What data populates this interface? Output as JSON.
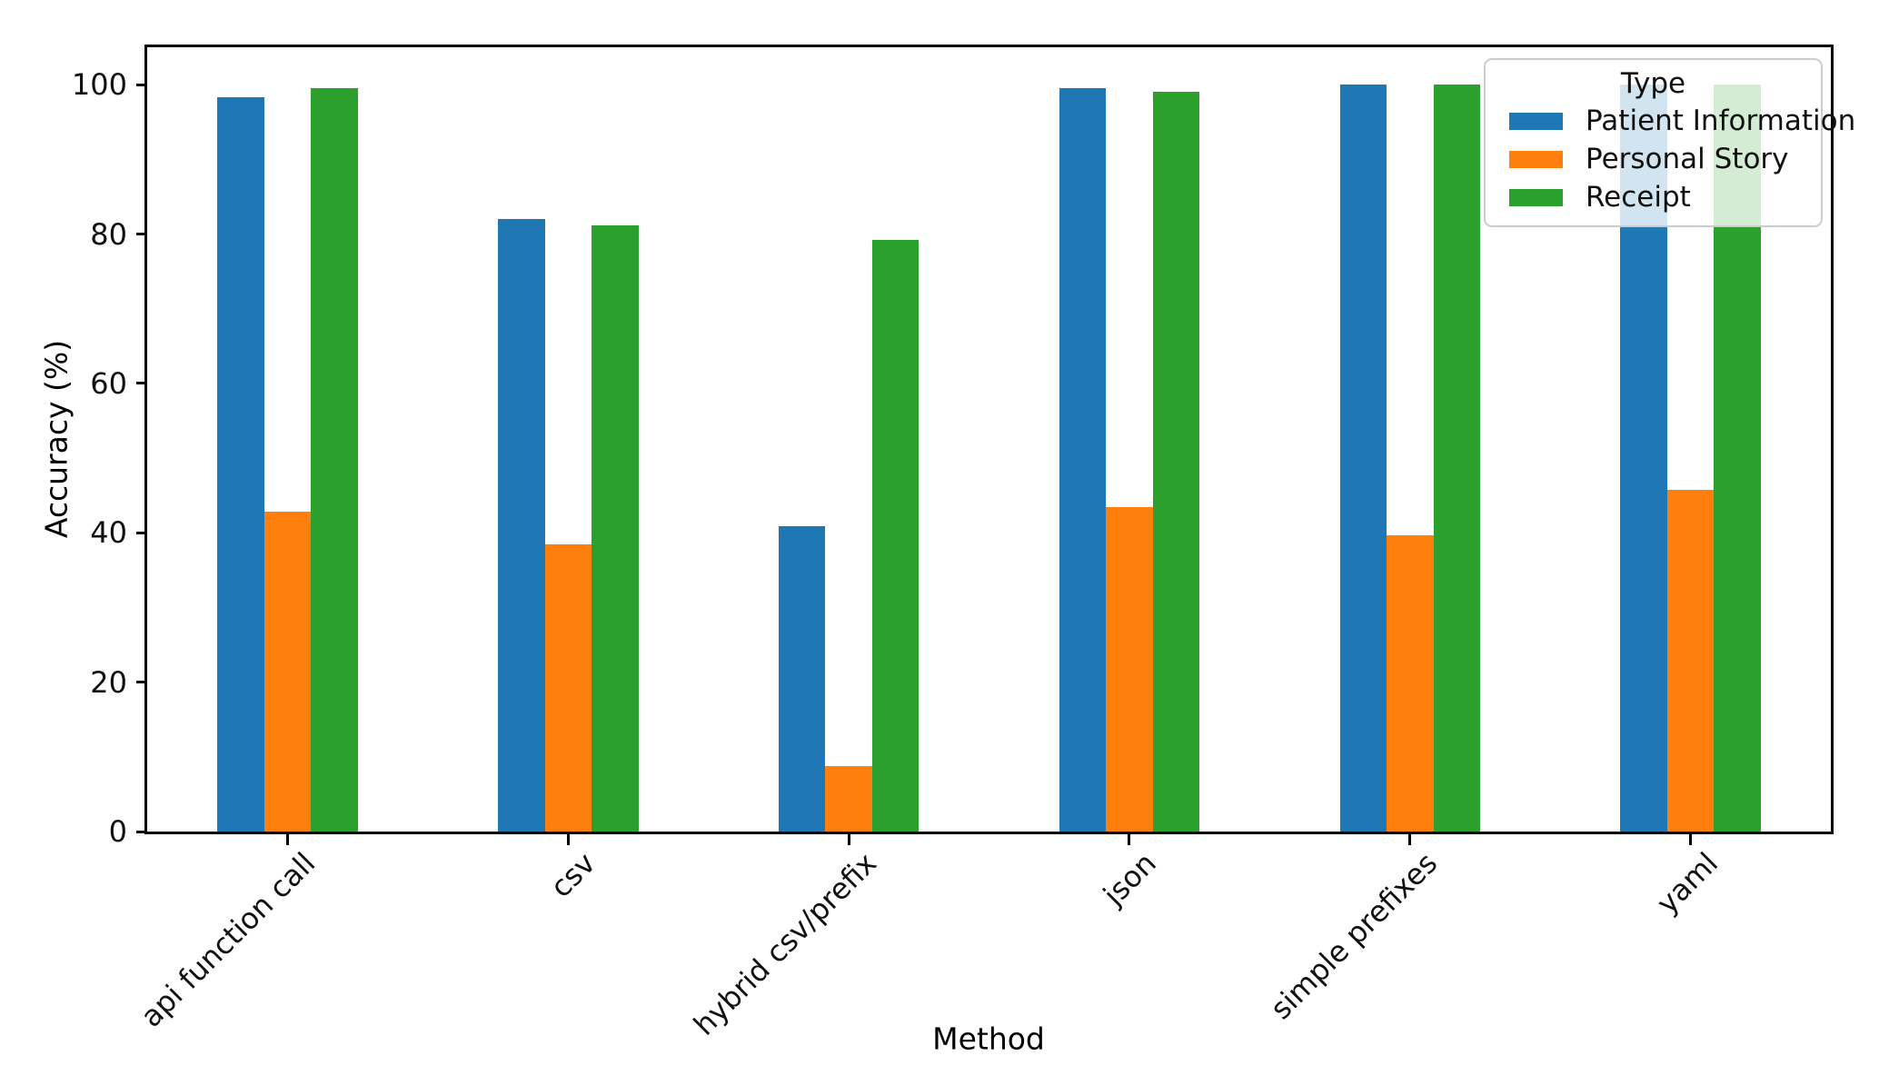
{
  "chart_data": {
    "type": "bar",
    "title": "",
    "xlabel": "Method",
    "ylabel": "Accuracy (%)",
    "categories": [
      "api function call",
      "csv",
      "hybrid csv/prefix",
      "json",
      "simple prefixes",
      "yaml"
    ],
    "series": [
      {
        "name": "Patient Information",
        "color": "#1f77b4",
        "values": [
          98.3,
          82.0,
          40.9,
          99.5,
          100.0,
          100.0
        ]
      },
      {
        "name": "Personal Story",
        "color": "#ff7f0e",
        "values": [
          42.8,
          38.5,
          8.8,
          43.4,
          39.7,
          45.8
        ]
      },
      {
        "name": "Receipt",
        "color": "#2ca02c",
        "values": [
          99.5,
          81.1,
          79.2,
          99.0,
          100.0,
          100.0
        ]
      }
    ],
    "yticks": [
      0,
      20,
      40,
      60,
      80,
      100
    ],
    "ylim": [
      0,
      105
    ],
    "legend_title": "Type",
    "legend_position": "upper right",
    "grid": false,
    "background_color": "#ffffff",
    "spine_color": "#000000"
  }
}
